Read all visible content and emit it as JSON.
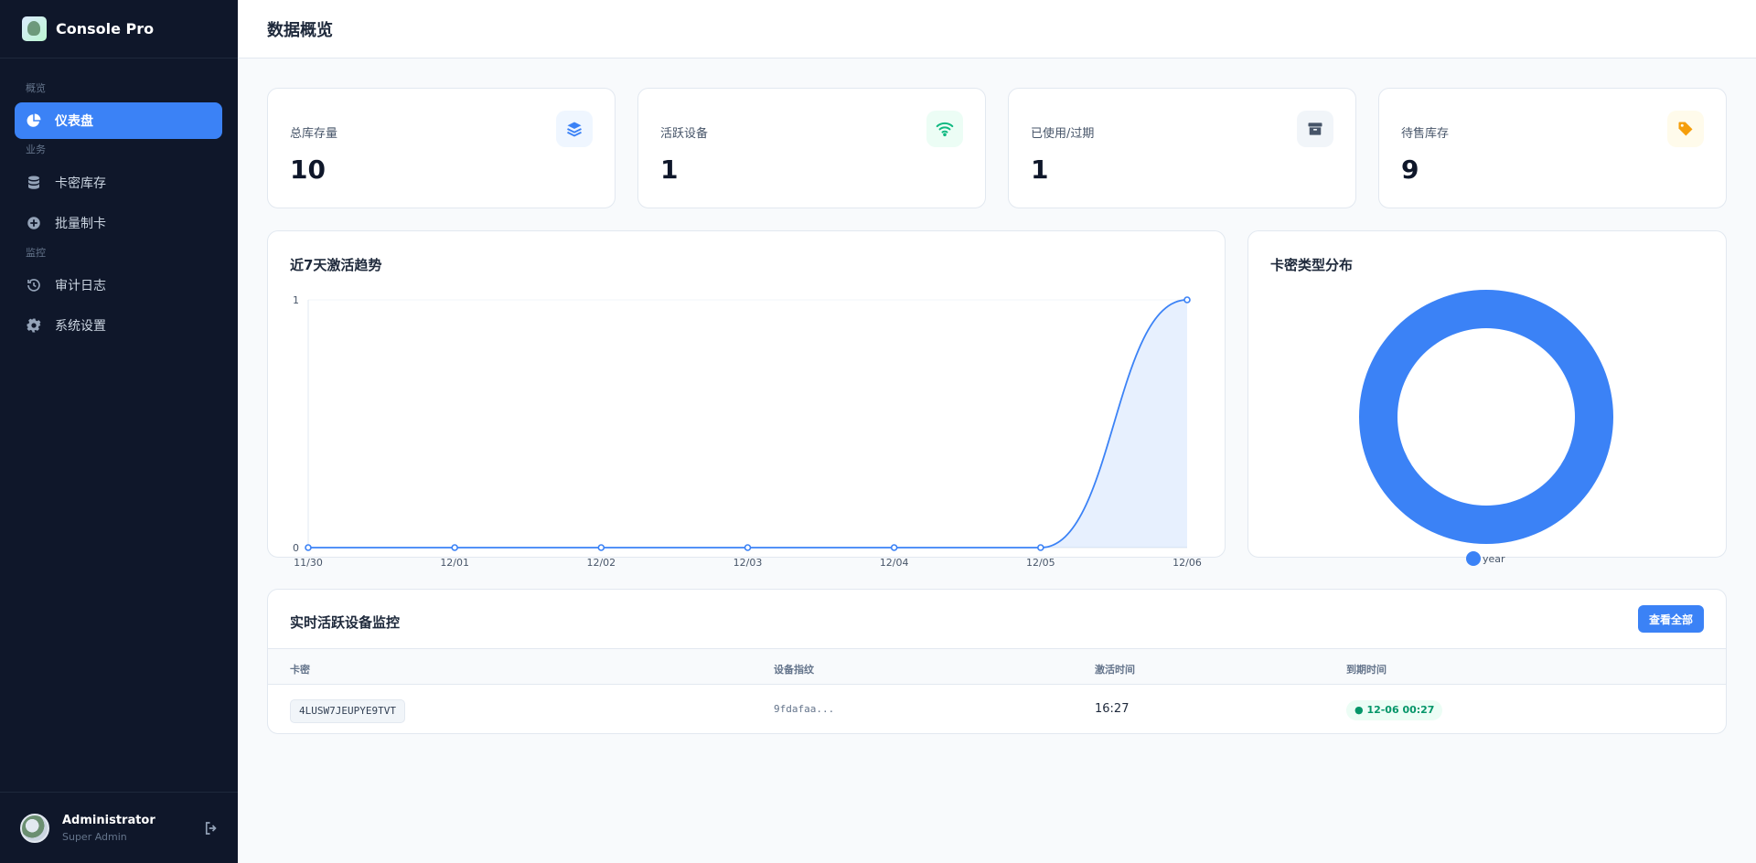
{
  "app": {
    "name": "Console Pro"
  },
  "sidebar": {
    "sections": [
      {
        "label": "概览"
      },
      {
        "label": "业务"
      },
      {
        "label": "监控"
      }
    ],
    "items": [
      {
        "label": "仪表盘",
        "icon": "pie-chart-icon",
        "active": true
      },
      {
        "label": "卡密库存",
        "icon": "database-icon",
        "active": false
      },
      {
        "label": "批量制卡",
        "icon": "plus-circle-icon",
        "active": false
      },
      {
        "label": "审计日志",
        "icon": "history-icon",
        "active": false
      },
      {
        "label": "系统设置",
        "icon": "gear-icon",
        "active": false
      }
    ],
    "user": {
      "name": "Administrator",
      "role": "Super Admin"
    }
  },
  "header": {
    "title": "数据概览"
  },
  "stats": [
    {
      "label": "总库存量",
      "value": "10",
      "icon": "layers-icon",
      "color": "#3b82f6",
      "bg": "#eff6ff"
    },
    {
      "label": "活跃设备",
      "value": "1",
      "icon": "wifi-icon",
      "color": "#10b981",
      "bg": "#ecfdf5"
    },
    {
      "label": "已使用/过期",
      "value": "1",
      "icon": "archive-icon",
      "color": "#475569",
      "bg": "#f1f5f9"
    },
    {
      "label": "待售库存",
      "value": "9",
      "icon": "tag-icon",
      "color": "#f59e0b",
      "bg": "#fffbeb"
    }
  ],
  "trend": {
    "title": "近7天激活趋势",
    "chart_data": {
      "type": "area",
      "x": [
        "11/30",
        "12/01",
        "12/02",
        "12/03",
        "12/04",
        "12/05",
        "12/06"
      ],
      "series": [
        {
          "values": [
            0,
            0,
            0,
            0,
            0,
            0,
            1
          ]
        }
      ],
      "ylim": [
        0,
        1
      ],
      "yticks": [
        "0",
        "1"
      ],
      "color": "#3b82f6"
    }
  },
  "distribution": {
    "title": "卡密类型分布",
    "chart_data": {
      "type": "pie",
      "donut": true,
      "categories": [
        "year"
      ],
      "values": [
        1
      ],
      "colors": [
        "#3b82f6"
      ],
      "legend": "bottom"
    }
  },
  "monitor": {
    "title": "实时活跃设备监控",
    "view_all_label": "查看全部",
    "columns": [
      "卡密",
      "设备指纹",
      "激活时间",
      "到期时间"
    ],
    "rows": [
      {
        "card": "4LUSW7JEUPYE9TVT",
        "fingerprint": "9fdafaa...",
        "activated": "16:27",
        "expires": "12-06 00:27"
      }
    ]
  }
}
